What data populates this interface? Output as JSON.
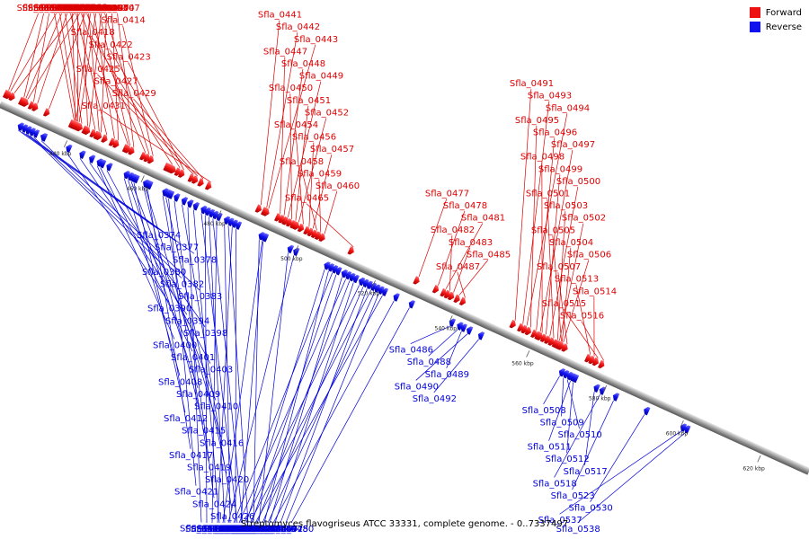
{
  "legend": {
    "forward_label": "Forward",
    "reverse_label": "Reverse",
    "forward_color": "#ee1111",
    "reverse_color": "#1111ee"
  },
  "caption": "Streptomyces flavogriseus ATCC 33331, complete genome. - 0..7337497",
  "genome": {
    "start_kbp": 422,
    "end_kbp": 632
  },
  "scale_ticks": [
    {
      "kbp": 440,
      "label": "440 kbp"
    },
    {
      "kbp": 460,
      "label": "460 kbp"
    },
    {
      "kbp": 480,
      "label": "480 kbp"
    },
    {
      "kbp": 500,
      "label": "500 kbp"
    },
    {
      "kbp": 520,
      "label": "520 kbp"
    },
    {
      "kbp": 540,
      "label": "540 kbp"
    },
    {
      "kbp": 560,
      "label": "560 kbp"
    },
    {
      "kbp": 580,
      "label": "580 kbp"
    },
    {
      "kbp": 600,
      "label": "600 kbp"
    },
    {
      "kbp": 620,
      "label": "620 kbp"
    }
  ],
  "forward_genes": [
    {
      "label": "Sfla_0366",
      "kbp": 423.0,
      "len": 1.5
    },
    {
      "label": "Sfla_0391",
      "kbp": 440.8,
      "len": 1.2
    },
    {
      "label": "Sfla_0375",
      "kbp": 427.0,
      "len": 1.0
    },
    {
      "label": "Sfla_0389",
      "kbp": 441.5,
      "len": 1.4
    },
    {
      "label": "Sfla_0365",
      "kbp": 424.0,
      "len": 1.0
    },
    {
      "label": "Sfla_0388",
      "kbp": 440.5,
      "len": 1.5
    },
    {
      "label": "Sfla_0364",
      "kbp": 422.5,
      "len": 1.0
    },
    {
      "label": "Sfla_0373",
      "kbp": 427.5,
      "len": 1.3
    },
    {
      "label": "Sfla_0405",
      "kbp": 453.5,
      "len": 1.2
    },
    {
      "label": "Sfla_0386",
      "kbp": 440.0,
      "len": 1.0
    },
    {
      "label": "Sfla_0371",
      "kbp": 426.5,
      "len": 1.2
    },
    {
      "label": "Sfla_0397",
      "kbp": 446.5,
      "len": 1.2
    },
    {
      "label": "Sfla_0385",
      "kbp": 439.8,
      "len": 1.0
    },
    {
      "label": "Sfla_0379",
      "kbp": 430.0,
      "len": 1.0
    },
    {
      "label": "Sfla_0396",
      "kbp": 446.0,
      "len": 1.2
    },
    {
      "label": "Sfla_0376",
      "kbp": 429.0,
      "len": 1.0
    },
    {
      "label": "Sfla_0384",
      "kbp": 439.5,
      "len": 1.0
    },
    {
      "label": "Sfla_0393",
      "kbp": 443.5,
      "len": 1.2
    },
    {
      "label": "Sfla_0404",
      "kbp": 451.0,
      "len": 1.2
    },
    {
      "label": "Sfla_0381",
      "kbp": 433.0,
      "len": 1.2
    },
    {
      "label": "Sfla_0387",
      "kbp": 440.2,
      "len": 1.4
    },
    {
      "label": "Sfla_0395",
      "kbp": 445.0,
      "len": 1.2
    },
    {
      "label": "Sfla_0406",
      "kbp": 454.0,
      "len": 1.2
    },
    {
      "label": "Sfla_0392",
      "kbp": 443.0,
      "len": 1.4
    },
    {
      "label": "Sfla_0402",
      "kbp": 450.0,
      "len": 1.3
    },
    {
      "label": "Sfla_0413",
      "kbp": 459.0,
      "len": 1.2
    },
    {
      "label": "Sfla_0399",
      "kbp": 448.0,
      "len": 1.2
    },
    {
      "label": "Sfla_0411",
      "kbp": 458.0,
      "len": 1.2
    },
    {
      "label": "Sfla_0425",
      "kbp": 470.5,
      "len": 1.0
    },
    {
      "label": "Sfla_0418",
      "kbp": 465.0,
      "len": 3.0
    },
    {
      "label": "Sfla_0407",
      "kbp": 455.0,
      "len": 1.2
    },
    {
      "label": "Sfla_0427",
      "kbp": 471.5,
      "len": 1.0
    },
    {
      "label": "Sfla_0414",
      "kbp": 460.0,
      "len": 1.2
    },
    {
      "label": "Sfla_0454",
      "kbp": 499.0,
      "len": 1.2
    },
    {
      "label": "Sfla_0423",
      "kbp": 468.0,
      "len": 1.0
    },
    {
      "label": "Sfla_0449",
      "kbp": 495.0,
      "len": 1.5
    },
    {
      "label": "Sfla_0422",
      "kbp": 467.0,
      "len": 1.0
    },
    {
      "label": "Sfla_0443",
      "kbp": 490.0,
      "len": 1.3
    },
    {
      "label": "Sfla_0451",
      "kbp": 497.0,
      "len": 1.2
    },
    {
      "label": "Sfla_0429",
      "kbp": 473.0,
      "len": 1.0
    },
    {
      "label": "Sfla_0441",
      "kbp": 488.0,
      "len": 1.3
    },
    {
      "label": "Sfla_0448",
      "kbp": 494.0,
      "len": 1.2
    },
    {
      "label": "Sfla_0431",
      "kbp": 475.0,
      "len": 1.0
    },
    {
      "label": "Sfla_0442",
      "kbp": 489.5,
      "len": 1.2
    },
    {
      "label": "Sfla_0450",
      "kbp": 496.0,
      "len": 1.2
    },
    {
      "label": "Sfla_0458",
      "kbp": 502.5,
      "len": 1.2
    },
    {
      "label": "Sfla_0447",
      "kbp": 493.0,
      "len": 1.2
    },
    {
      "label": "Sfla_0457",
      "kbp": 501.5,
      "len": 1.2
    },
    {
      "label": "Sfla_0452",
      "kbp": 497.8,
      "len": 1.4
    },
    {
      "label": "Sfla_0456",
      "kbp": 500.5,
      "len": 1.2
    },
    {
      "label": "Sfla_0459",
      "kbp": 503.5,
      "len": 1.4
    },
    {
      "label": "Sfla_0460",
      "kbp": 504.5,
      "len": 1.2
    },
    {
      "label": "Sfla_0465",
      "kbp": 512.0,
      "len": 0.8
    },
    {
      "label": "Sfla_0485",
      "kbp": 539.5,
      "len": 1.2
    },
    {
      "label": "Sfla_0482",
      "kbp": 537.0,
      "len": 1.2
    },
    {
      "label": "Sfla_0478",
      "kbp": 534.0,
      "len": 1.2
    },
    {
      "label": "Sfla_0477",
      "kbp": 529.0,
      "len": 1.2
    },
    {
      "label": "Sfla_0483",
      "kbp": 538.0,
      "len": 1.2
    },
    {
      "label": "Sfla_0481",
      "kbp": 536.0,
      "len": 1.2
    },
    {
      "label": "Sfla_0487",
      "kbp": 541.0,
      "len": 1.2
    },
    {
      "label": "Sfla_0506",
      "kbp": 566.5,
      "len": 1.2
    },
    {
      "label": "Sfla_0502",
      "kbp": 565.5,
      "len": 1.2
    },
    {
      "label": "Sfla_0497",
      "kbp": 560.5,
      "len": 1.2
    },
    {
      "label": "Sfla_0496",
      "kbp": 559.5,
      "len": 1.2
    },
    {
      "label": "Sfla_0505",
      "kbp": 566.0,
      "len": 1.2
    },
    {
      "label": "Sfla_0493",
      "kbp": 556.0,
      "len": 1.2
    },
    {
      "label": "Sfla_0500",
      "kbp": 563.0,
      "len": 1.2
    },
    {
      "label": "Sfla_0491",
      "kbp": 554.0,
      "len": 1.2
    },
    {
      "label": "Sfla_0499",
      "kbp": 562.0,
      "len": 1.2
    },
    {
      "label": "Sfla_0495",
      "kbp": 558.0,
      "len": 1.2
    },
    {
      "label": "Sfla_0503",
      "kbp": 565.0,
      "len": 1.2
    },
    {
      "label": "Sfla_0494",
      "kbp": 557.0,
      "len": 1.2
    },
    {
      "label": "Sfla_0501",
      "kbp": 564.0,
      "len": 1.2
    },
    {
      "label": "Sfla_0498",
      "kbp": 561.0,
      "len": 1.2
    },
    {
      "label": "Sfla_0504",
      "kbp": 566.2,
      "len": 1.2
    },
    {
      "label": "Sfla_0514",
      "kbp": 574.5,
      "len": 1.2
    },
    {
      "label": "Sfla_0513",
      "kbp": 573.5,
      "len": 1.2
    },
    {
      "label": "Sfla_0515",
      "kbp": 575.5,
      "len": 1.2
    },
    {
      "label": "Sfla_0507",
      "kbp": 567.5,
      "len": 1.2
    },
    {
      "label": "Sfla_0516",
      "kbp": 577.0,
      "len": 1.2
    }
  ],
  "reverse_genes": [
    {
      "label": "Sfla_0374",
      "kbp": 428.5,
      "len": 1.2
    },
    {
      "label": "Sfla_0383",
      "kbp": 434.5,
      "len": 1.5
    },
    {
      "label": "Sfla_0377",
      "kbp": 429.5,
      "len": 1.2
    },
    {
      "label": "Sfla_0378",
      "kbp": 430.5,
      "len": 1.2
    },
    {
      "label": "Sfla_0380",
      "kbp": 431.5,
      "len": 1.2
    },
    {
      "label": "Sfla_0382",
      "kbp": 432.5,
      "len": 1.2
    },
    {
      "label": "Sfla_0390",
      "kbp": 441.0,
      "len": 1.2
    },
    {
      "label": "Sfla_0394",
      "kbp": 444.5,
      "len": 1.2
    },
    {
      "label": "Sfla_0398",
      "kbp": 447.0,
      "len": 1.2
    },
    {
      "label": "Sfla_0400",
      "kbp": 449.0,
      "len": 1.2
    },
    {
      "label": "Sfla_0401",
      "kbp": 449.8,
      "len": 1.2
    },
    {
      "label": "Sfla_0412",
      "kbp": 458.5,
      "len": 1.2
    },
    {
      "label": "Sfla_0403",
      "kbp": 451.5,
      "len": 1.2
    },
    {
      "label": "Sfla_0415",
      "kbp": 461.0,
      "len": 1.2
    },
    {
      "label": "Sfla_0417",
      "kbp": 462.0,
      "len": 1.2
    },
    {
      "label": "Sfla_0408",
      "kbp": 456.0,
      "len": 1.2
    },
    {
      "label": "Sfla_0428",
      "kbp": 472.5,
      "len": 1.2
    },
    {
      "label": "Sfla_0419",
      "kbp": 466.0,
      "len": 1.2
    },
    {
      "label": "Sfla_0409",
      "kbp": 457.0,
      "len": 1.2
    },
    {
      "label": "Sfla_0430",
      "kbp": 474.0,
      "len": 1.2
    },
    {
      "label": "Sfla_0420",
      "kbp": 466.8,
      "len": 1.2
    },
    {
      "label": "Sfla_0435",
      "kbp": 479.0,
      "len": 1.2
    },
    {
      "label": "Sfla_0410",
      "kbp": 457.8,
      "len": 1.2
    },
    {
      "label": "Sfla_0446",
      "kbp": 492.0,
      "len": 1.2
    },
    {
      "label": "Sfla_0424",
      "kbp": 469.0,
      "len": 1.2
    },
    {
      "label": "Sfla_0444",
      "kbp": 491.0,
      "len": 1.2
    },
    {
      "label": "Sfla_0416",
      "kbp": 461.5,
      "len": 1.2
    },
    {
      "label": "Sfla_0440",
      "kbp": 485.0,
      "len": 1.2
    },
    {
      "label": "Sfla_0455",
      "kbp": 500.0,
      "len": 1.2
    },
    {
      "label": "Sfla_0432",
      "kbp": 476.0,
      "len": 1.2
    },
    {
      "label": "Sfla_0421",
      "kbp": 467.5,
      "len": 1.2
    },
    {
      "label": "Sfla_0445",
      "kbp": 491.8,
      "len": 1.2
    },
    {
      "label": "Sfla_0437",
      "kbp": 482.0,
      "len": 1.2
    },
    {
      "label": "Sfla_0426",
      "kbp": 471.0,
      "len": 1.2
    },
    {
      "label": "Sfla_0453",
      "kbp": 498.5,
      "len": 1.2
    },
    {
      "label": "Sfla_0433",
      "kbp": 477.0,
      "len": 1.2
    },
    {
      "label": "Sfla_0461",
      "kbp": 508.0,
      "len": 1.2
    },
    {
      "label": "Sfla_0434",
      "kbp": 478.0,
      "len": 1.2
    },
    {
      "label": "Sfla_0462",
      "kbp": 509.0,
      "len": 1.2
    },
    {
      "label": "Sfla_0436",
      "kbp": 480.0,
      "len": 1.2
    },
    {
      "label": "Sfla_0470",
      "kbp": 517.0,
      "len": 1.2
    },
    {
      "label": "Sfla_0480",
      "kbp": 530.0,
      "len": 1.2
    },
    {
      "label": "Sfla_0463",
      "kbp": 510.0,
      "len": 1.2
    },
    {
      "label": "Sfla_0471",
      "kbp": 518.0,
      "len": 1.2
    },
    {
      "label": "Sfla_0438",
      "kbp": 483.0,
      "len": 1.2
    },
    {
      "label": "Sfla_0464",
      "kbp": 511.0,
      "len": 1.2
    },
    {
      "label": "Sfla_0473",
      "kbp": 520.0,
      "len": 1.2
    },
    {
      "label": "Sfla_0439",
      "kbp": 484.0,
      "len": 1.2
    },
    {
      "label": "Sfla_0490",
      "kbp": 545.0,
      "len": 1.2
    },
    {
      "label": "Sfla_0466",
      "kbp": 512.5,
      "len": 1.2
    },
    {
      "label": "Sfla_0475",
      "kbp": 522.0,
      "len": 1.2
    },
    {
      "label": "Sfla_0486",
      "kbp": 540.5,
      "len": 1.2
    },
    {
      "label": "Sfla_0492",
      "kbp": 548.0,
      "len": 1.2
    },
    {
      "label": "Sfla_0467",
      "kbp": 513.5,
      "len": 1.2
    },
    {
      "label": "Sfla_0476",
      "kbp": 523.0,
      "len": 1.2
    },
    {
      "label": "Sfla_0488",
      "kbp": 542.5,
      "len": 1.2
    },
    {
      "label": "Sfla_0508",
      "kbp": 569.0,
      "len": 1.2
    },
    {
      "label": "Sfla_0468",
      "kbp": 514.5,
      "len": 1.2
    },
    {
      "label": "Sfla_0479",
      "kbp": 526.0,
      "len": 1.2
    },
    {
      "label": "Sfla_0489",
      "kbp": 543.5,
      "len": 1.2
    },
    {
      "label": "Sfla_0469",
      "kbp": 515.5,
      "len": 1.2
    },
    {
      "label": "Sfla_0512",
      "kbp": 572.5,
      "len": 1.2
    },
    {
      "label": "Sfla_0472",
      "kbp": 519.0,
      "len": 1.2
    },
    {
      "label": "Sfla_0509",
      "kbp": 570.0,
      "len": 1.2
    },
    {
      "label": "Sfla_0474",
      "kbp": 521.0,
      "len": 1.2
    },
    {
      "label": "Sfla_0510",
      "kbp": 571.0,
      "len": 1.2
    },
    {
      "label": "Sfla_0523",
      "kbp": 583.0,
      "len": 1.2
    },
    {
      "label": "Sfla_0511",
      "kbp": 571.8,
      "len": 1.2
    },
    {
      "label": "Sfla_0530",
      "kbp": 591.0,
      "len": 1.2
    },
    {
      "label": "Sfla_0517",
      "kbp": 578.0,
      "len": 1.2
    },
    {
      "label": "Sfla_0537",
      "kbp": 600.5,
      "len": 1.2
    },
    {
      "label": "Sfla_0518",
      "kbp": 579.5,
      "len": 1.2
    },
    {
      "label": "Sfla_0538",
      "kbp": 601.5,
      "len": 1.2
    }
  ]
}
